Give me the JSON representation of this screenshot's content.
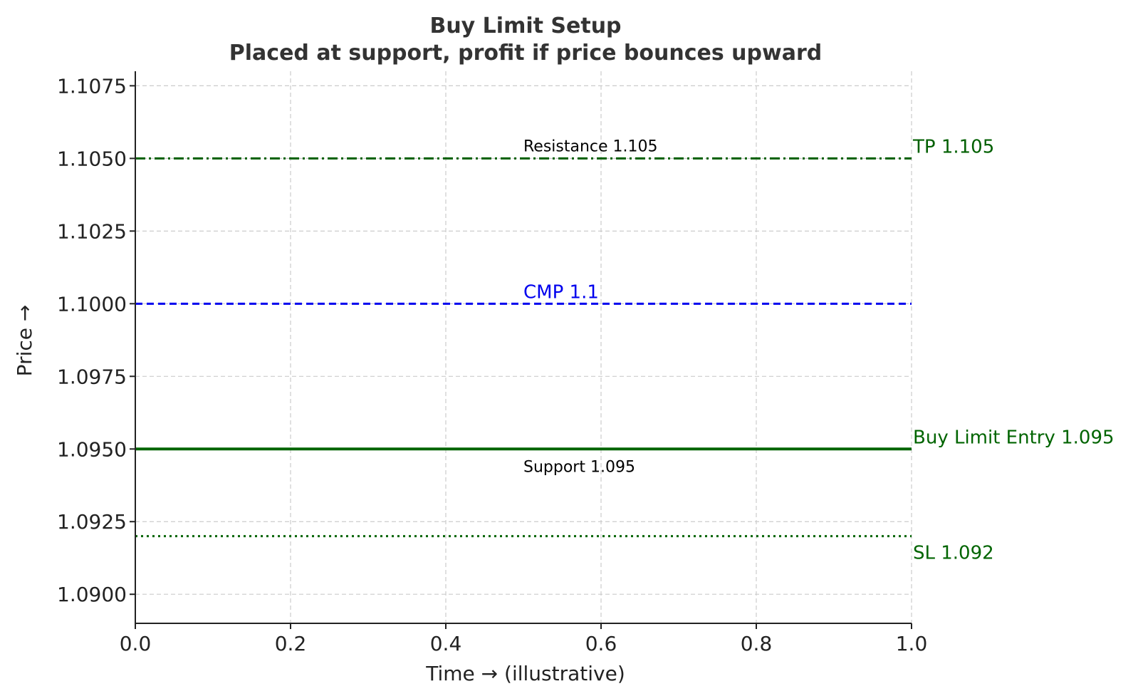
{
  "chart_data": {
    "type": "line",
    "title": "Buy Limit Setup",
    "subtitle": "Placed at support, profit if price bounces upward",
    "xlabel": "Time → (illustrative)",
    "ylabel": "Price →",
    "xlim": [
      0,
      1
    ],
    "ylim": [
      1.089,
      1.108
    ],
    "grid": true,
    "x_ticks": [
      {
        "value": 0.0,
        "label": "0.0"
      },
      {
        "value": 0.2,
        "label": "0.2"
      },
      {
        "value": 0.4,
        "label": "0.4"
      },
      {
        "value": 0.6,
        "label": "0.6"
      },
      {
        "value": 0.8,
        "label": "0.8"
      },
      {
        "value": 1.0,
        "label": "1.0"
      }
    ],
    "y_ticks": [
      {
        "value": 1.09,
        "label": "1.0900"
      },
      {
        "value": 1.0925,
        "label": "1.0925"
      },
      {
        "value": 1.095,
        "label": "1.0950"
      },
      {
        "value": 1.0975,
        "label": "1.0975"
      },
      {
        "value": 1.1,
        "label": "1.1000"
      },
      {
        "value": 1.1025,
        "label": "1.1025"
      },
      {
        "value": 1.105,
        "label": "1.1050"
      },
      {
        "value": 1.1075,
        "label": "1.1075"
      }
    ],
    "lines": [
      {
        "y": 1.105,
        "style": "dashdot",
        "color": "#005f00",
        "label": "TP 1.105"
      },
      {
        "y": 1.1,
        "style": "dashed",
        "color": "#0000ee",
        "label": ""
      },
      {
        "y": 1.095,
        "style": "solid",
        "color": "#006400",
        "label": "Buy Limit Entry 1.095"
      },
      {
        "y": 1.092,
        "style": "dotted",
        "color": "#006400",
        "label": "SL 1.092"
      }
    ],
    "annotations": [
      {
        "text": "Resistance 1.105",
        "x": 0.5,
        "y": 1.105,
        "color": "#000000",
        "position": "above"
      },
      {
        "text": "CMP 1.1",
        "x": 0.5,
        "y": 1.1,
        "color": "#0000ee",
        "position": "above"
      },
      {
        "text": "Support 1.095",
        "x": 0.5,
        "y": 1.095,
        "color": "#000000",
        "position": "below"
      }
    ]
  }
}
